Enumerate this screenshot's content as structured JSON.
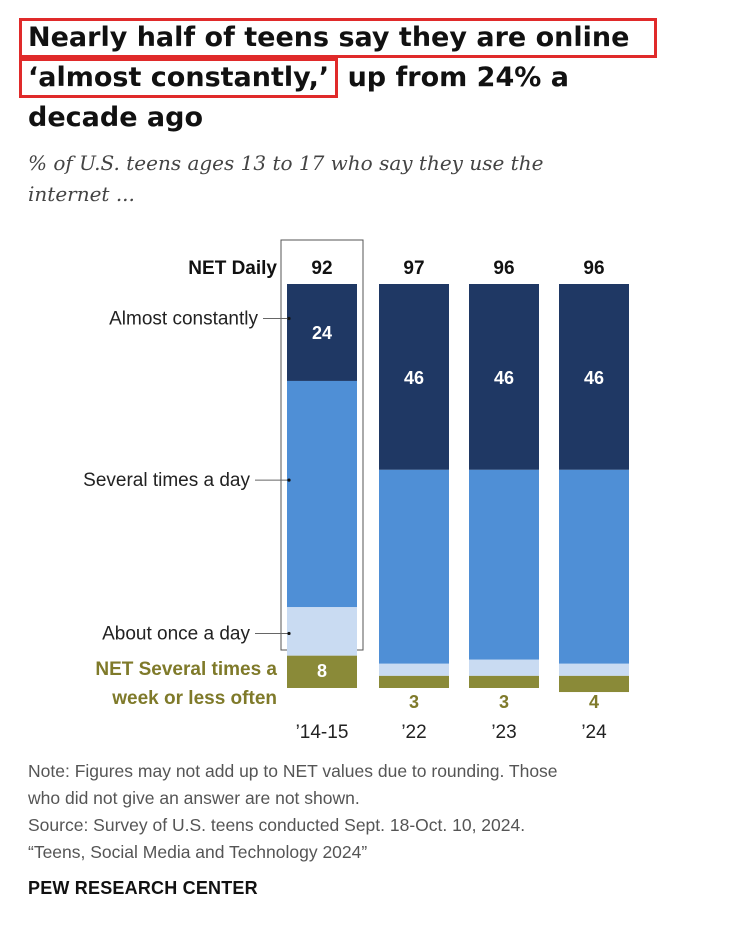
{
  "title": {
    "line1": "Nearly half of teens say they are online",
    "line2_highlight": "‘almost constantly,’",
    "line2_rest": "up from 24% a",
    "line3": "decade ago"
  },
  "subtitle": "% of U.S. teens ages 13 to 17 who say they use the internet ...",
  "chart_data": {
    "type": "bar",
    "stacked": true,
    "categories": [
      "’14-15",
      "’22",
      "’23",
      "’24"
    ],
    "net_daily_label": "NET Daily",
    "net_daily": [
      92,
      97,
      96,
      96
    ],
    "series": [
      {
        "name": "Almost constantly",
        "values": [
          24,
          46,
          46,
          46
        ],
        "labels": [
          "24",
          "46",
          "46",
          "46"
        ],
        "color": "#1f3864"
      },
      {
        "name": "Several times a day",
        "values": [
          56,
          48,
          47,
          48
        ],
        "labels": [
          "",
          "",
          "",
          ""
        ],
        "color": "#4f8fd6"
      },
      {
        "name": "About once a day",
        "values": [
          12,
          3,
          4,
          3
        ],
        "labels": [
          "",
          "",
          "",
          ""
        ],
        "color": "#c9dbf2"
      },
      {
        "name": "NET Several times a week or less often",
        "values": [
          8,
          3,
          3,
          4
        ],
        "labels": [
          "8",
          "3",
          "3",
          "4"
        ],
        "color": "#8a8a38"
      }
    ],
    "ylim": [
      0,
      100
    ],
    "highlighted_category": "’14-15"
  },
  "notes": {
    "note_line1": "Note: Figures may not add up to NET values due to rounding. Those",
    "note_line2": "who did not give an answer are not shown.",
    "source_line1": "Source: Survey of U.S. teens conducted Sept. 18-Oct. 10, 2024.",
    "source_line2": "“Teens, Social Media and Technology 2024”"
  },
  "brand": "PEW RESEARCH CENTER"
}
